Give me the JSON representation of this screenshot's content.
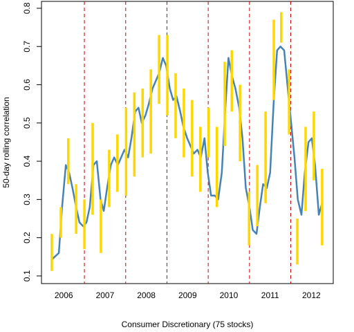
{
  "chart_data": {
    "type": "line",
    "xlabel": "Consumer Discretionary (75 stocks)",
    "ylabel": "50-day rolling correlation",
    "xlim": [
      2005.96,
      2013.03
    ],
    "ylim": [
      0.08,
      0.818
    ],
    "yticks": [
      0.1,
      0.2,
      0.3,
      0.4,
      0.5,
      0.6,
      0.7,
      0.8
    ],
    "xticks": [
      {
        "value": 2006.5,
        "label": "2006"
      },
      {
        "value": 2007.5,
        "label": "2007"
      },
      {
        "value": 2008.5,
        "label": "2008"
      },
      {
        "value": 2009.5,
        "label": "2009"
      },
      {
        "value": 2010.5,
        "label": "2010"
      },
      {
        "value": 2011.5,
        "label": "2011"
      },
      {
        "value": 2012.5,
        "label": "2012"
      }
    ],
    "vlines": [
      2007,
      2008,
      2009,
      2010,
      2011,
      2012
    ],
    "vline_color": "#cc0000",
    "line": {
      "color": "#4682b4",
      "x": [
        2006.21,
        2006.3,
        2006.38,
        2006.46,
        2006.55,
        2006.63,
        2006.71,
        2006.8,
        2006.88,
        2006.97,
        2007.05,
        2007.13,
        2007.22,
        2007.3,
        2007.39,
        2007.47,
        2007.55,
        2007.64,
        2007.72,
        2007.81,
        2007.89,
        2007.97,
        2008.06,
        2008.14,
        2008.23,
        2008.31,
        2008.39,
        2008.48,
        2008.56,
        2008.65,
        2008.73,
        2008.81,
        2008.9,
        2008.98,
        2009.07,
        2009.15,
        2009.23,
        2009.32,
        2009.4,
        2009.49,
        2009.57,
        2009.65,
        2009.74,
        2009.82,
        2009.91,
        2009.99,
        2010.07,
        2010.16,
        2010.24,
        2010.33,
        2010.41,
        2010.49,
        2010.58,
        2010.66,
        2010.75,
        2010.83,
        2010.91,
        2011.0,
        2011.08,
        2011.17,
        2011.25,
        2011.33,
        2011.42,
        2011.5,
        2011.59,
        2011.67,
        2011.75,
        2011.84,
        2011.92,
        2012.01,
        2012.09,
        2012.17,
        2012.26,
        2012.34,
        2012.43,
        2012.51,
        2012.59,
        2012.68,
        2012.76
      ],
      "values": [
        0.143,
        0.152,
        0.16,
        0.28,
        0.39,
        0.37,
        0.33,
        0.28,
        0.24,
        0.23,
        0.24,
        0.28,
        0.39,
        0.4,
        0.3,
        0.27,
        0.33,
        0.39,
        0.41,
        0.39,
        0.41,
        0.43,
        0.41,
        0.46,
        0.53,
        0.54,
        0.5,
        0.52,
        0.55,
        0.59,
        0.61,
        0.63,
        0.67,
        0.65,
        0.59,
        0.56,
        0.57,
        0.53,
        0.49,
        0.46,
        0.44,
        0.42,
        0.43,
        0.41,
        0.46,
        0.37,
        0.31,
        0.31,
        0.3,
        0.37,
        0.53,
        0.67,
        0.62,
        0.59,
        0.54,
        0.46,
        0.33,
        0.28,
        0.22,
        0.21,
        0.28,
        0.34,
        0.33,
        0.37,
        0.56,
        0.69,
        0.7,
        0.69,
        0.6,
        0.5,
        0.41,
        0.3,
        0.26,
        0.37,
        0.45,
        0.46,
        0.39,
        0.26,
        0.29
      ]
    },
    "ranges": {
      "color": "#ffd700",
      "x": [
        2006.21,
        2006.43,
        2006.61,
        2006.8,
        2007.0,
        2007.2,
        2007.4,
        2007.6,
        2007.8,
        2008.01,
        2008.21,
        2008.41,
        2008.61,
        2008.81,
        2009.01,
        2009.21,
        2009.41,
        2009.61,
        2009.81,
        2010.01,
        2010.21,
        2010.4,
        2010.57,
        2010.77,
        2010.99,
        2011.19,
        2011.39,
        2011.59,
        2011.77,
        2011.96,
        2012.16,
        2012.36,
        2012.56,
        2012.76
      ],
      "low": [
        0.113,
        0.2,
        0.34,
        0.21,
        0.17,
        0.26,
        0.16,
        0.28,
        0.32,
        0.31,
        0.36,
        0.41,
        0.42,
        0.55,
        0.52,
        0.46,
        0.41,
        0.36,
        0.32,
        0.41,
        0.28,
        0.44,
        0.53,
        0.4,
        0.18,
        0.23,
        0.29,
        0.56,
        0.71,
        0.47,
        0.13,
        0.27,
        0.35,
        0.18
      ],
      "high": [
        0.21,
        0.28,
        0.46,
        0.34,
        0.3,
        0.5,
        0.3,
        0.43,
        0.47,
        0.54,
        0.58,
        0.59,
        0.64,
        0.73,
        0.73,
        0.63,
        0.59,
        0.56,
        0.49,
        0.54,
        0.49,
        0.66,
        0.69,
        0.6,
        0.32,
        0.39,
        0.53,
        0.77,
        0.79,
        0.64,
        0.25,
        0.49,
        0.53,
        0.38
      ]
    }
  }
}
